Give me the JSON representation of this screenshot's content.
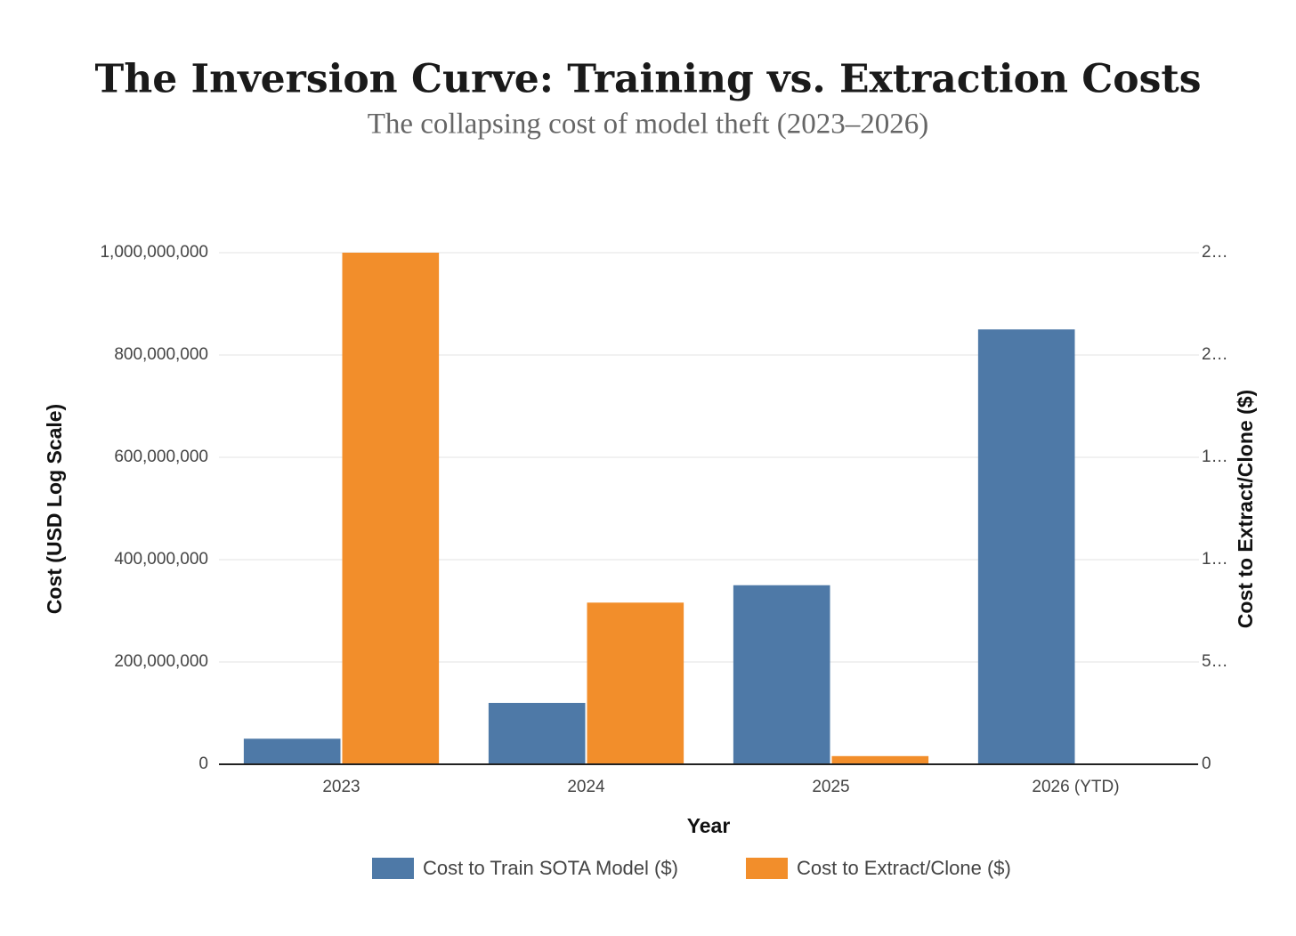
{
  "chart_data": {
    "type": "bar",
    "title": "The Inversion Curve: Training vs. Extraction Costs",
    "subtitle": "The collapsing cost of model theft (2023–2026)",
    "x_label": "Year",
    "y_label": "Cost (USD Log Scale)",
    "y2_label": "Cost to Extract/Clone ($)",
    "categories": [
      "2023",
      "2024",
      "2025",
      "2026 (YTD)"
    ],
    "series": [
      {
        "name": "Cost to Train SOTA Model ($)",
        "color": "#4e79a7",
        "values": [
          50000000,
          120000000,
          350000000,
          850000000
        ]
      },
      {
        "name": "Cost to Extract/Clone ($)",
        "color": "#f28e2b",
        "axis": "y2",
        "values": [
          2500000,
          790000,
          40000,
          0
        ]
      }
    ],
    "ylim": [
      0,
      1000000000
    ],
    "yticks": [
      0,
      {
        "value": 200000000,
        "label": "200,000,000"
      },
      {
        "value": 400000000,
        "label": "400,000,000"
      },
      {
        "value": 600000000,
        "label": "600,000,000"
      },
      {
        "value": 800000000,
        "label": "800,000,000"
      },
      {
        "value": 1000000000,
        "label": "1,000,000,000"
      }
    ],
    "y2lim": [
      0,
      2500000
    ],
    "y2ticks": [
      0,
      {
        "value": 500000,
        "label": "5…"
      },
      {
        "value": 1000000,
        "label": "1…"
      },
      {
        "value": 1500000,
        "label": "1…"
      },
      {
        "value": 2000000,
        "label": "2…"
      },
      {
        "value": 2500000,
        "label": "2…"
      }
    ],
    "grid": true,
    "legend": "bottom"
  }
}
